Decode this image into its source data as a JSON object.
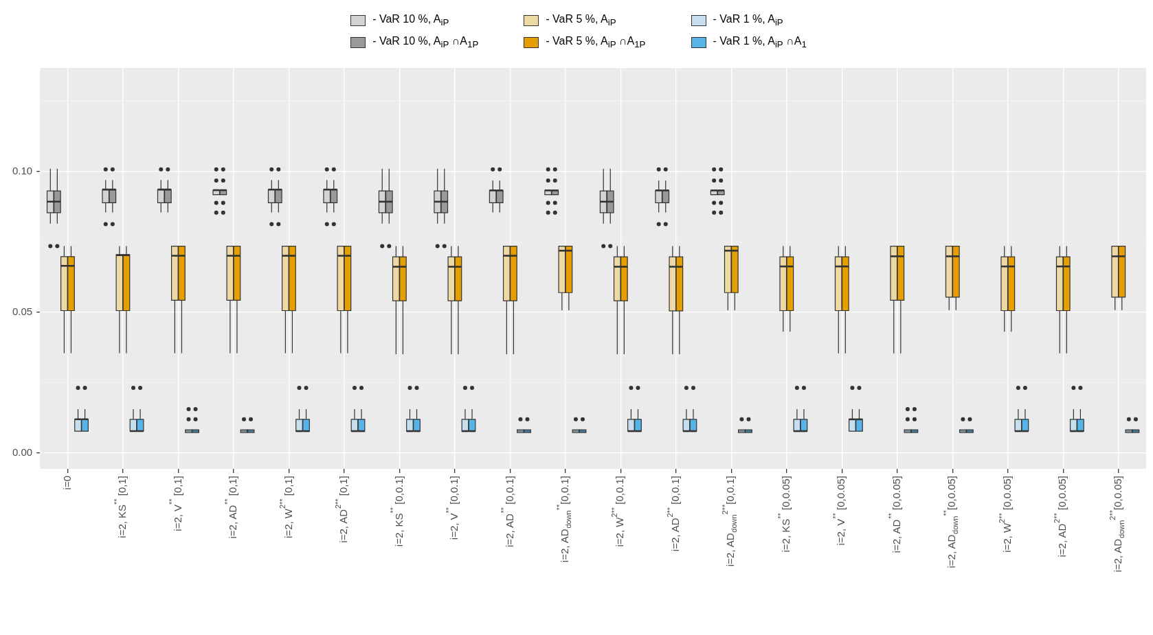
{
  "chart_data": {
    "type": "box",
    "legend": "top",
    "grid": true,
    "ylim": [
      -0.0057,
      0.1367
    ],
    "yticks": [
      {
        "value": 0,
        "label": "0.00"
      },
      {
        "value": 0.05,
        "label": "0.05"
      },
      {
        "value": 0.1,
        "label": "0.10"
      }
    ],
    "categories": [
      "i=0",
      "i=2, KS$^{**}$ [0,1]",
      "i=2, V$^{**}$ [0,1]",
      "i=2, AD$^{**}$ [0,1]",
      "i=2, W$^{2**}$ [0,1]",
      "i=2, AD$^{2**}$ [0,1]",
      "i=2, KS$^{**}$ [0,0.1]",
      "i=2, V$^{**}$ [0,0.1]",
      "i=2, AD$^{**}$ [0,0.1]",
      "i=2, AD$_{down}$$^{**}$[0,0.1]",
      "i=2, W$^{2**}$ [0,0.1]",
      "i=2, AD$^{2**}$ [0,0.1]",
      "i=2, AD$_{down}$$^{2**}$[0,0.1]",
      "i=2, KS$^{**}$ [0,0.05]",
      "i=2, V$^{**}$ [0,0.05]",
      "i=2, AD$^{**}$ [0,0.05]",
      "i=2, AD$_{down}$$^{**}$[0,0.05]",
      "i=2, W$^{2**}$ [0,0.05]",
      "i=2, AD$^{2**}$ [0,0.05]",
      "i=2, AD$_{down}$$^{2**}$[0,0.05]"
    ],
    "series": [
      {
        "name": "- VaR 10 %, A$_{iP}$",
        "color": "#d3d3d3",
        "boxes": [
          {
            "low": 0.0814,
            "q1": 0.0853,
            "median": 0.0892,
            "q3": 0.093,
            "high": 0.1009,
            "outliers": [
              0.0734
            ]
          },
          {
            "low": 0.0854,
            "q1": 0.0888,
            "median": 0.0935,
            "q3": 0.0935,
            "high": 0.0969,
            "outliers": [
              0.1007,
              0.0812
            ]
          },
          {
            "low": 0.0854,
            "q1": 0.0888,
            "median": 0.0935,
            "q3": 0.0935,
            "high": 0.0969,
            "outliers": [
              0.1007
            ]
          },
          {
            "low": 0.0917,
            "q1": 0.0917,
            "median": 0.0933,
            "q3": 0.0933,
            "high": 0.0933,
            "outliers": [
              0.1007,
              0.0967,
              0.0888,
              0.0853
            ]
          },
          {
            "low": 0.0854,
            "q1": 0.0888,
            "median": 0.0935,
            "q3": 0.0935,
            "high": 0.0969,
            "outliers": [
              0.1007,
              0.0812
            ]
          },
          {
            "low": 0.0854,
            "q1": 0.0888,
            "median": 0.0935,
            "q3": 0.0935,
            "high": 0.0969,
            "outliers": [
              0.1007,
              0.0812
            ]
          },
          {
            "low": 0.0814,
            "q1": 0.0853,
            "median": 0.0892,
            "q3": 0.093,
            "high": 0.1009,
            "outliers": [
              0.0734
            ]
          },
          {
            "low": 0.0814,
            "q1": 0.0853,
            "median": 0.0892,
            "q3": 0.093,
            "high": 0.1009,
            "outliers": [
              0.0734
            ]
          },
          {
            "low": 0.0854,
            "q1": 0.0888,
            "median": 0.0932,
            "q3": 0.0932,
            "high": 0.0967,
            "outliers": [
              0.1007
            ]
          },
          {
            "low": 0.0917,
            "q1": 0.0917,
            "median": 0.0932,
            "q3": 0.0932,
            "high": 0.0932,
            "outliers": [
              0.1007,
              0.0967,
              0.0888,
              0.0853
            ]
          },
          {
            "low": 0.0814,
            "q1": 0.0853,
            "median": 0.0892,
            "q3": 0.093,
            "high": 0.1009,
            "outliers": [
              0.0734
            ]
          },
          {
            "low": 0.0854,
            "q1": 0.0888,
            "median": 0.0932,
            "q3": 0.0932,
            "high": 0.0967,
            "outliers": [
              0.1007,
              0.0812
            ]
          },
          {
            "low": 0.0917,
            "q1": 0.0917,
            "median": 0.0932,
            "q3": 0.0932,
            "high": 0.0932,
            "outliers": [
              0.1007,
              0.0967,
              0.0888,
              0.0853
            ]
          },
          null,
          null,
          null,
          null,
          null,
          null,
          null
        ]
      },
      {
        "name": "- VaR 10 %, A$_{iP}$ ∩A$_{1P}$",
        "color": "#999999",
        "boxes": [
          {
            "low": 0.0814,
            "q1": 0.0853,
            "median": 0.0892,
            "q3": 0.093,
            "high": 0.1009,
            "outliers": [
              0.0734
            ]
          },
          {
            "low": 0.0854,
            "q1": 0.0888,
            "median": 0.0935,
            "q3": 0.0935,
            "high": 0.0969,
            "outliers": [
              0.1007,
              0.0812
            ]
          },
          {
            "low": 0.0854,
            "q1": 0.0888,
            "median": 0.0935,
            "q3": 0.0935,
            "high": 0.0969,
            "outliers": [
              0.1007
            ]
          },
          {
            "low": 0.0917,
            "q1": 0.0917,
            "median": 0.0933,
            "q3": 0.0933,
            "high": 0.0933,
            "outliers": [
              0.1007,
              0.0967,
              0.0888,
              0.0853
            ]
          },
          {
            "low": 0.0854,
            "q1": 0.0888,
            "median": 0.0935,
            "q3": 0.0935,
            "high": 0.0969,
            "outliers": [
              0.1007,
              0.0812
            ]
          },
          {
            "low": 0.0854,
            "q1": 0.0888,
            "median": 0.0935,
            "q3": 0.0935,
            "high": 0.0969,
            "outliers": [
              0.1007,
              0.0812
            ]
          },
          {
            "low": 0.0814,
            "q1": 0.0853,
            "median": 0.0892,
            "q3": 0.093,
            "high": 0.1009,
            "outliers": [
              0.0734
            ]
          },
          {
            "low": 0.0814,
            "q1": 0.0853,
            "median": 0.0892,
            "q3": 0.093,
            "high": 0.1009,
            "outliers": [
              0.0734
            ]
          },
          {
            "low": 0.0854,
            "q1": 0.0888,
            "median": 0.0932,
            "q3": 0.0932,
            "high": 0.0967,
            "outliers": [
              0.1007
            ]
          },
          {
            "low": 0.0917,
            "q1": 0.0917,
            "median": 0.0932,
            "q3": 0.0932,
            "high": 0.0932,
            "outliers": [
              0.1007,
              0.0967,
              0.0888,
              0.0853
            ]
          },
          {
            "low": 0.0814,
            "q1": 0.0853,
            "median": 0.0892,
            "q3": 0.093,
            "high": 0.1009,
            "outliers": [
              0.0734
            ]
          },
          {
            "low": 0.0854,
            "q1": 0.0888,
            "median": 0.0932,
            "q3": 0.0932,
            "high": 0.0967,
            "outliers": [
              0.1007,
              0.0812
            ]
          },
          {
            "low": 0.0917,
            "q1": 0.0917,
            "median": 0.0932,
            "q3": 0.0932,
            "high": 0.0932,
            "outliers": [
              0.1007,
              0.0967,
              0.0888,
              0.0853
            ]
          },
          null,
          null,
          null,
          null,
          null,
          null,
          null
        ]
      },
      {
        "name": "- VaR 5 %, A$_{iP}$",
        "color": "#eed9a4",
        "boxes": [
          {
            "low": 0.0354,
            "q1": 0.0505,
            "median": 0.0664,
            "q3": 0.0697,
            "high": 0.0734
          },
          {
            "low": 0.0354,
            "q1": 0.0505,
            "median": 0.0702,
            "q3": 0.0704,
            "high": 0.0734
          },
          {
            "low": 0.0354,
            "q1": 0.0542,
            "median": 0.07,
            "q3": 0.0734,
            "high": 0.0734
          },
          {
            "low": 0.0354,
            "q1": 0.0542,
            "median": 0.07,
            "q3": 0.0734,
            "high": 0.0734
          },
          {
            "low": 0.0354,
            "q1": 0.0505,
            "median": 0.07,
            "q3": 0.0734,
            "high": 0.0734
          },
          {
            "low": 0.0354,
            "q1": 0.0505,
            "median": 0.07,
            "q3": 0.0734,
            "high": 0.0734
          },
          {
            "low": 0.035,
            "q1": 0.054,
            "median": 0.0661,
            "q3": 0.0696,
            "high": 0.0734
          },
          {
            "low": 0.035,
            "q1": 0.054,
            "median": 0.0661,
            "q3": 0.0696,
            "high": 0.0734
          },
          {
            "low": 0.035,
            "q1": 0.054,
            "median": 0.07,
            "q3": 0.0734,
            "high": 0.0734
          },
          {
            "low": 0.0506,
            "q1": 0.0569,
            "median": 0.0718,
            "q3": 0.0734,
            "high": 0.0734
          },
          {
            "low": 0.035,
            "q1": 0.054,
            "median": 0.0661,
            "q3": 0.0696,
            "high": 0.0734
          },
          {
            "low": 0.035,
            "q1": 0.0504,
            "median": 0.0661,
            "q3": 0.0696,
            "high": 0.0734
          },
          {
            "low": 0.0506,
            "q1": 0.0569,
            "median": 0.0718,
            "q3": 0.0734,
            "high": 0.0734
          },
          {
            "low": 0.043,
            "q1": 0.0505,
            "median": 0.0662,
            "q3": 0.0696,
            "high": 0.0734
          },
          {
            "low": 0.0353,
            "q1": 0.0505,
            "median": 0.0662,
            "q3": 0.0696,
            "high": 0.0734
          },
          {
            "low": 0.0353,
            "q1": 0.0542,
            "median": 0.0698,
            "q3": 0.0734,
            "high": 0.0734
          },
          {
            "low": 0.0507,
            "q1": 0.0553,
            "median": 0.0698,
            "q3": 0.0734,
            "high": 0.0734
          },
          {
            "low": 0.043,
            "q1": 0.0505,
            "median": 0.0662,
            "q3": 0.0696,
            "high": 0.0734
          },
          {
            "low": 0.0353,
            "q1": 0.0505,
            "median": 0.0662,
            "q3": 0.0696,
            "high": 0.0734
          },
          {
            "low": 0.0507,
            "q1": 0.0553,
            "median": 0.0698,
            "q3": 0.0734,
            "high": 0.0734
          }
        ]
      },
      {
        "name": "- VaR 5 %, A$_{iP}$ ∩A$_{1P}$",
        "color": "#e69f00",
        "boxes": [
          {
            "low": 0.0354,
            "q1": 0.0505,
            "median": 0.0664,
            "q3": 0.0697,
            "high": 0.0734
          },
          {
            "low": 0.0354,
            "q1": 0.0505,
            "median": 0.0702,
            "q3": 0.0704,
            "high": 0.0734
          },
          {
            "low": 0.0354,
            "q1": 0.0542,
            "median": 0.07,
            "q3": 0.0734,
            "high": 0.0734
          },
          {
            "low": 0.0354,
            "q1": 0.0542,
            "median": 0.07,
            "q3": 0.0734,
            "high": 0.0734
          },
          {
            "low": 0.0354,
            "q1": 0.0505,
            "median": 0.07,
            "q3": 0.0734,
            "high": 0.0734
          },
          {
            "low": 0.0354,
            "q1": 0.0505,
            "median": 0.07,
            "q3": 0.0734,
            "high": 0.0734
          },
          {
            "low": 0.035,
            "q1": 0.054,
            "median": 0.0661,
            "q3": 0.0696,
            "high": 0.0734
          },
          {
            "low": 0.035,
            "q1": 0.054,
            "median": 0.0661,
            "q3": 0.0696,
            "high": 0.0734
          },
          {
            "low": 0.035,
            "q1": 0.054,
            "median": 0.07,
            "q3": 0.0734,
            "high": 0.0734
          },
          {
            "low": 0.0506,
            "q1": 0.0569,
            "median": 0.0718,
            "q3": 0.0734,
            "high": 0.0734
          },
          {
            "low": 0.035,
            "q1": 0.054,
            "median": 0.0661,
            "q3": 0.0696,
            "high": 0.0734
          },
          {
            "low": 0.035,
            "q1": 0.0504,
            "median": 0.0661,
            "q3": 0.0696,
            "high": 0.0734
          },
          {
            "low": 0.0506,
            "q1": 0.0569,
            "median": 0.0718,
            "q3": 0.0734,
            "high": 0.0734
          },
          {
            "low": 0.043,
            "q1": 0.0505,
            "median": 0.0662,
            "q3": 0.0696,
            "high": 0.0734
          },
          {
            "low": 0.0353,
            "q1": 0.0505,
            "median": 0.0662,
            "q3": 0.0696,
            "high": 0.0734
          },
          {
            "low": 0.0353,
            "q1": 0.0542,
            "median": 0.0698,
            "q3": 0.0734,
            "high": 0.0734
          },
          {
            "low": 0.0507,
            "q1": 0.0553,
            "median": 0.0698,
            "q3": 0.0734,
            "high": 0.0734
          },
          {
            "low": 0.043,
            "q1": 0.0505,
            "median": 0.0662,
            "q3": 0.0696,
            "high": 0.0734
          },
          {
            "low": 0.0353,
            "q1": 0.0505,
            "median": 0.0662,
            "q3": 0.0696,
            "high": 0.0734
          },
          {
            "low": 0.0507,
            "q1": 0.0553,
            "median": 0.0698,
            "q3": 0.0734,
            "high": 0.0734
          }
        ]
      },
      {
        "name": "- VaR 1 %, A$_{iP}$",
        "color": "#c6dfee",
        "boxes": [
          {
            "low": 0.0077,
            "q1": 0.0077,
            "median": 0.0119,
            "q3": 0.0119,
            "high": 0.0155,
            "outliers": [
              0.0231
            ]
          },
          {
            "low": 0.0077,
            "q1": 0.0077,
            "median": 0.0077,
            "q3": 0.0119,
            "high": 0.0155,
            "outliers": [
              0.0231
            ]
          },
          {
            "low": 0.0077,
            "q1": 0.0077,
            "median": 0.0077,
            "q3": 0.0077,
            "high": 0.0077,
            "outliers": [
              0.0155,
              0.0119
            ]
          },
          {
            "low": 0.0077,
            "q1": 0.0077,
            "median": 0.0077,
            "q3": 0.0077,
            "high": 0.0077,
            "outliers": [
              0.0119
            ]
          },
          {
            "low": 0.0077,
            "q1": 0.0077,
            "median": 0.0077,
            "q3": 0.0119,
            "high": 0.0155,
            "outliers": [
              0.0231
            ]
          },
          {
            "low": 0.0077,
            "q1": 0.0077,
            "median": 0.0077,
            "q3": 0.0119,
            "high": 0.0155,
            "outliers": [
              0.0231
            ]
          },
          {
            "low": 0.0077,
            "q1": 0.0077,
            "median": 0.0077,
            "q3": 0.0119,
            "high": 0.0155,
            "outliers": [
              0.0231
            ]
          },
          {
            "low": 0.0077,
            "q1": 0.0077,
            "median": 0.0077,
            "q3": 0.0119,
            "high": 0.0155,
            "outliers": [
              0.0231
            ]
          },
          {
            "low": 0.0077,
            "q1": 0.0077,
            "median": 0.0077,
            "q3": 0.0077,
            "high": 0.0077,
            "outliers": [
              0.0119
            ]
          },
          {
            "low": 0.0077,
            "q1": 0.0077,
            "median": 0.0077,
            "q3": 0.0077,
            "high": 0.0077,
            "outliers": [
              0.0119
            ]
          },
          {
            "low": 0.0077,
            "q1": 0.0077,
            "median": 0.0077,
            "q3": 0.0119,
            "high": 0.0155,
            "outliers": [
              0.0231
            ]
          },
          {
            "low": 0.0077,
            "q1": 0.0077,
            "median": 0.0077,
            "q3": 0.0119,
            "high": 0.0155,
            "outliers": [
              0.0231
            ]
          },
          {
            "low": 0.0077,
            "q1": 0.0077,
            "median": 0.0077,
            "q3": 0.0077,
            "high": 0.0077,
            "outliers": [
              0.0119
            ]
          },
          {
            "low": 0.0077,
            "q1": 0.0077,
            "median": 0.0077,
            "q3": 0.0119,
            "high": 0.0155,
            "outliers": [
              0.0231
            ]
          },
          {
            "low": 0.0077,
            "q1": 0.0077,
            "median": 0.0119,
            "q3": 0.0119,
            "high": 0.0155,
            "outliers": [
              0.0231
            ]
          },
          {
            "low": 0.0077,
            "q1": 0.0077,
            "median": 0.0077,
            "q3": 0.0077,
            "high": 0.0077,
            "outliers": [
              0.0155,
              0.0119
            ]
          },
          {
            "low": 0.0077,
            "q1": 0.0077,
            "median": 0.0077,
            "q3": 0.0077,
            "high": 0.0077,
            "outliers": [
              0.0119
            ]
          },
          {
            "low": 0.0077,
            "q1": 0.0077,
            "median": 0.0077,
            "q3": 0.0119,
            "high": 0.0155,
            "outliers": [
              0.0231
            ]
          },
          {
            "low": 0.0077,
            "q1": 0.0077,
            "median": 0.0077,
            "q3": 0.0119,
            "high": 0.0155,
            "outliers": [
              0.0231
            ]
          },
          {
            "low": 0.0077,
            "q1": 0.0077,
            "median": 0.0077,
            "q3": 0.0077,
            "high": 0.0077,
            "outliers": [
              0.0119
            ]
          }
        ]
      },
      {
        "name": "- VaR 1 %, A$_{iP}$ ∩A$_{1}$",
        "color": "#56b4e9",
        "boxes": [
          {
            "low": 0.0077,
            "q1": 0.0077,
            "median": 0.0119,
            "q3": 0.0119,
            "high": 0.0155,
            "outliers": [
              0.0231
            ]
          },
          {
            "low": 0.0077,
            "q1": 0.0077,
            "median": 0.0077,
            "q3": 0.0119,
            "high": 0.0155,
            "outliers": [
              0.0231
            ]
          },
          {
            "low": 0.0077,
            "q1": 0.0077,
            "median": 0.0077,
            "q3": 0.0077,
            "high": 0.0077,
            "outliers": [
              0.0155,
              0.0119
            ]
          },
          {
            "low": 0.0077,
            "q1": 0.0077,
            "median": 0.0077,
            "q3": 0.0077,
            "high": 0.0077,
            "outliers": [
              0.0119
            ]
          },
          {
            "low": 0.0077,
            "q1": 0.0077,
            "median": 0.0077,
            "q3": 0.0119,
            "high": 0.0155,
            "outliers": [
              0.0231
            ]
          },
          {
            "low": 0.0077,
            "q1": 0.0077,
            "median": 0.0077,
            "q3": 0.0119,
            "high": 0.0155,
            "outliers": [
              0.0231
            ]
          },
          {
            "low": 0.0077,
            "q1": 0.0077,
            "median": 0.0077,
            "q3": 0.0119,
            "high": 0.0155,
            "outliers": [
              0.0231
            ]
          },
          {
            "low": 0.0077,
            "q1": 0.0077,
            "median": 0.0077,
            "q3": 0.0119,
            "high": 0.0155,
            "outliers": [
              0.0231
            ]
          },
          {
            "low": 0.0077,
            "q1": 0.0077,
            "median": 0.0077,
            "q3": 0.0077,
            "high": 0.0077,
            "outliers": [
              0.0119
            ]
          },
          {
            "low": 0.0077,
            "q1": 0.0077,
            "median": 0.0077,
            "q3": 0.0077,
            "high": 0.0077,
            "outliers": [
              0.0119
            ]
          },
          {
            "low": 0.0077,
            "q1": 0.0077,
            "median": 0.0077,
            "q3": 0.0119,
            "high": 0.0155,
            "outliers": [
              0.0231
            ]
          },
          {
            "low": 0.0077,
            "q1": 0.0077,
            "median": 0.0077,
            "q3": 0.0119,
            "high": 0.0155,
            "outliers": [
              0.0231
            ]
          },
          {
            "low": 0.0077,
            "q1": 0.0077,
            "median": 0.0077,
            "q3": 0.0077,
            "high": 0.0077,
            "outliers": [
              0.0119
            ]
          },
          {
            "low": 0.0077,
            "q1": 0.0077,
            "median": 0.0077,
            "q3": 0.0119,
            "high": 0.0155,
            "outliers": [
              0.0231
            ]
          },
          {
            "low": 0.0077,
            "q1": 0.0077,
            "median": 0.0119,
            "q3": 0.0119,
            "high": 0.0155,
            "outliers": [
              0.0231
            ]
          },
          {
            "low": 0.0077,
            "q1": 0.0077,
            "median": 0.0077,
            "q3": 0.0077,
            "high": 0.0077,
            "outliers": [
              0.0155,
              0.0119
            ]
          },
          {
            "low": 0.0077,
            "q1": 0.0077,
            "median": 0.0077,
            "q3": 0.0077,
            "high": 0.0077,
            "outliers": [
              0.0119
            ]
          },
          {
            "low": 0.0077,
            "q1": 0.0077,
            "median": 0.0077,
            "q3": 0.0119,
            "high": 0.0155,
            "outliers": [
              0.0231
            ]
          },
          {
            "low": 0.0077,
            "q1": 0.0077,
            "median": 0.0077,
            "q3": 0.0119,
            "high": 0.0155,
            "outliers": [
              0.0231
            ]
          },
          {
            "low": 0.0077,
            "q1": 0.0077,
            "median": 0.0077,
            "q3": 0.0077,
            "high": 0.0077,
            "outliers": [
              0.0119
            ]
          }
        ]
      }
    ]
  }
}
